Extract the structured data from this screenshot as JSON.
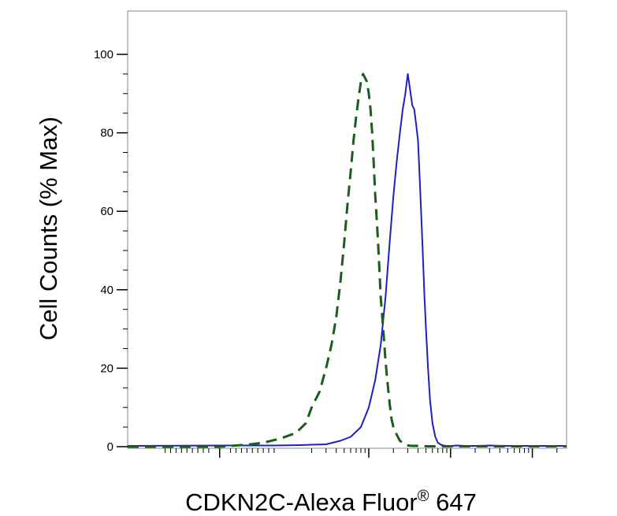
{
  "chart_data": {
    "type": "line",
    "title": "",
    "xlabel": "CDKN2C-Alexa Fluor",
    "xlabel_superscript": "®",
    "xlabel_suffix": " 647",
    "ylabel": "Cell Counts (% Max)",
    "x_scale": "log",
    "xlim": [
      -200,
      262144
    ],
    "ylim": [
      0,
      100
    ],
    "y_ticks": [
      0,
      20,
      40,
      60,
      80,
      100
    ],
    "y_tick_labels": [
      "0",
      "20",
      "40",
      "60",
      "80",
      "100"
    ],
    "grid": false,
    "legend": "none",
    "series": [
      {
        "color": "#1f1fbf",
        "line_style": "solid",
        "x": [
          -200,
          0,
          100,
          150,
          200,
          300,
          450,
          600,
          800,
          1000,
          1200,
          1400,
          1600,
          1800,
          2000,
          2200,
          2400,
          2600,
          2800,
          3000,
          3200,
          3400,
          3600,
          3800,
          4000,
          4200,
          4400,
          4600,
          4800,
          5000,
          5300,
          5600,
          6000,
          6500,
          7000,
          7600,
          8200,
          9000,
          10000,
          12000,
          15000,
          20000,
          30000,
          50000,
          100000,
          262144
        ],
        "y": [
          0.2,
          0.3,
          0.3,
          0.4,
          0.5,
          0.6,
          1.5,
          2.5,
          5,
          10,
          17,
          26,
          38,
          52,
          64,
          73,
          80,
          86,
          90,
          95,
          91,
          87,
          86,
          82,
          78,
          68,
          58,
          48,
          38,
          30,
          20,
          12,
          6,
          2.5,
          1,
          0.5,
          0.3,
          0.2,
          0.2,
          0.3,
          0.2,
          0.2,
          0.3,
          0.2,
          0.2,
          0.2
        ]
      },
      {
        "color": "#1b5e1b",
        "line_style": "dashed",
        "x": [
          -200,
          0,
          50,
          80,
          110,
          140,
          170,
          200,
          250,
          300,
          350,
          400,
          450,
          500,
          550,
          600,
          650,
          700,
          750,
          800,
          850,
          900,
          950,
          1000,
          1050,
          1100,
          1150,
          1200,
          1250,
          1300,
          1350,
          1400,
          1500,
          1600,
          1700,
          1800,
          1900,
          2000,
          2200,
          2400,
          2600,
          2800,
          3000,
          3400,
          4000,
          5000,
          7000,
          10000,
          262144
        ],
        "y": [
          0,
          0,
          0.5,
          1,
          2,
          3.5,
          6,
          10,
          14,
          20,
          26,
          33,
          42,
          52,
          62,
          70,
          78,
          84,
          89,
          93,
          95,
          94,
          93,
          90,
          86,
          80,
          72,
          64,
          58,
          52,
          45,
          38,
          30,
          22,
          16,
          11,
          7,
          5,
          3,
          1.5,
          1,
          0.5,
          0.3,
          0.2,
          0.2,
          0.1,
          0.1,
          0.1,
          0.1
        ]
      }
    ]
  }
}
